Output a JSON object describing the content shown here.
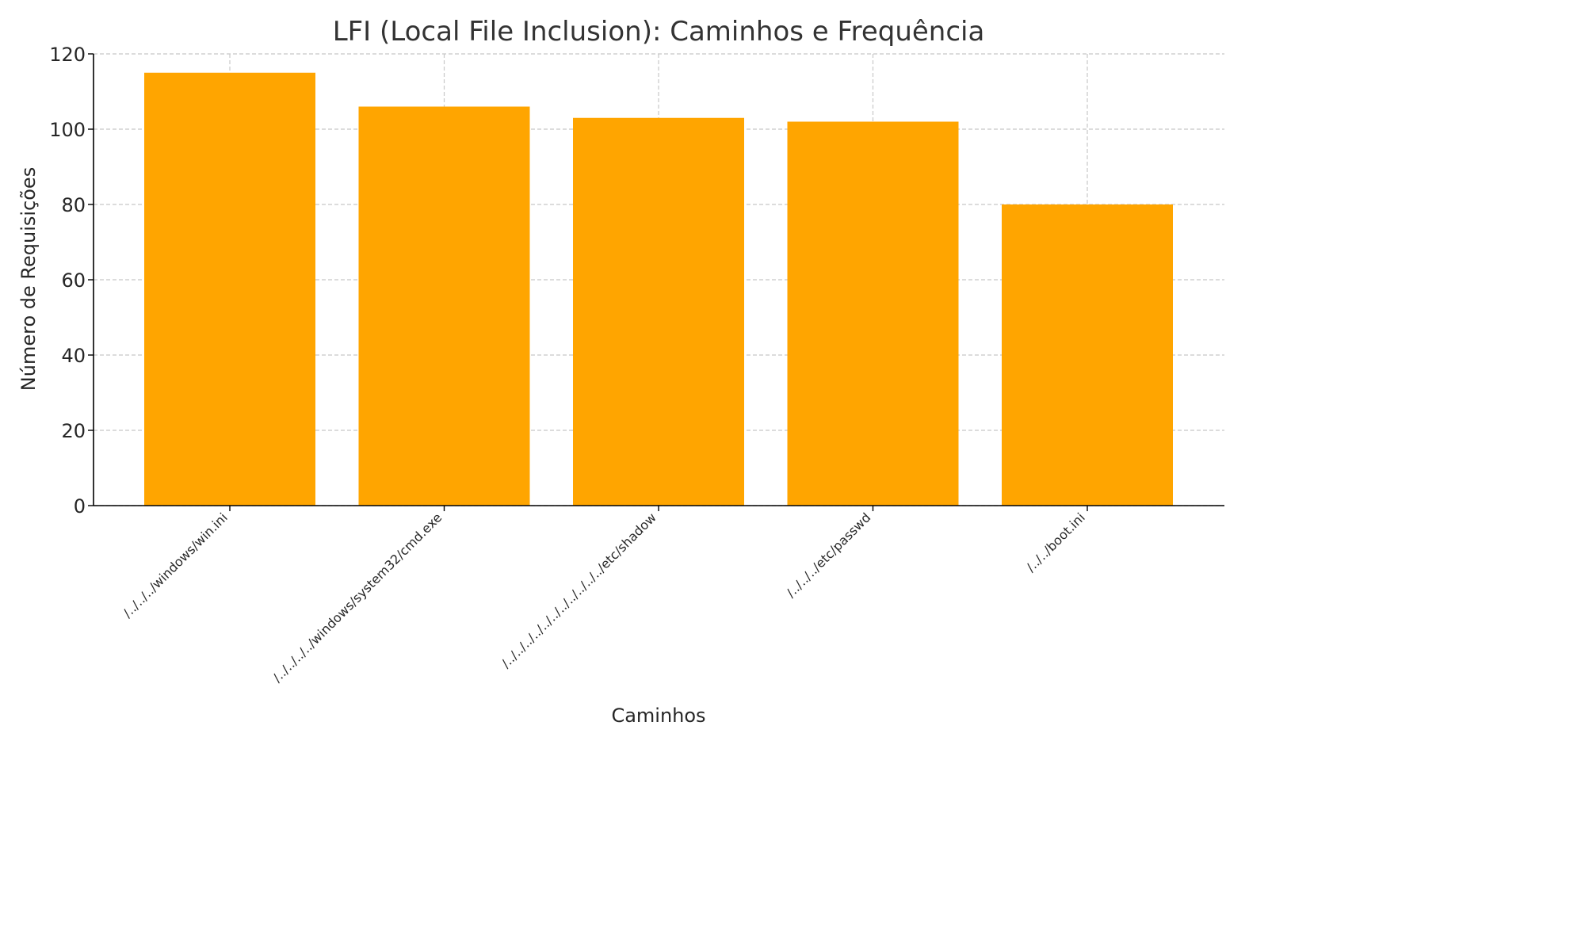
{
  "chart_data": {
    "type": "bar",
    "title": "LFI (Local File Inclusion): Caminhos e Frequência",
    "xlabel": "Caminhos",
    "ylabel": "Número de Requisições",
    "categories": [
      "/../../../windows/win.ini",
      "/../../../../windows/system32/cmd.exe",
      "/../../../../../../../../../../../etc/shadow",
      "/../../../etc/passwd",
      "/../../boot.ini"
    ],
    "values": [
      115,
      106,
      103,
      102,
      80
    ],
    "ylim": [
      0,
      120
    ],
    "yticks": [
      "0",
      "20",
      "40",
      "60",
      "80",
      "100",
      "120"
    ],
    "grid": true,
    "bar_color": "#FFA500",
    "grid_color": "#c8c8c8",
    "xtick_rotation_deg": 45
  }
}
